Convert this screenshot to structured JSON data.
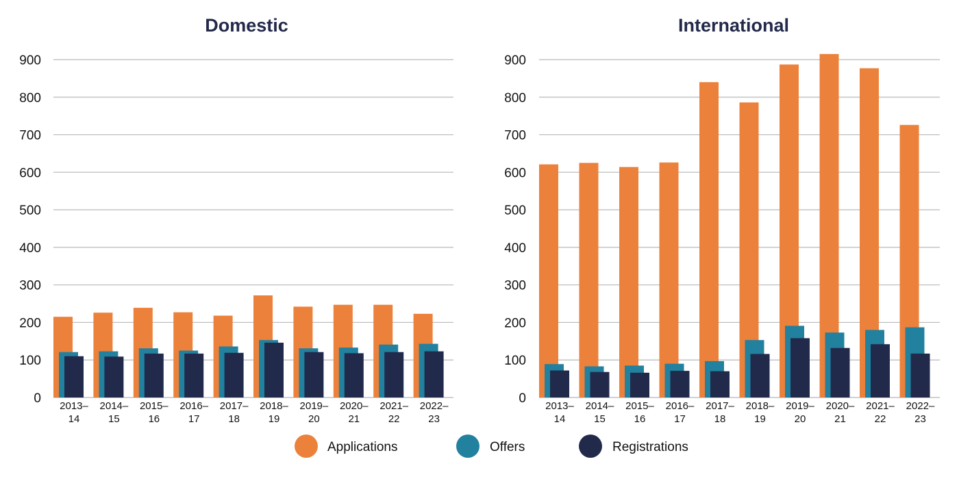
{
  "chart_data": [
    {
      "type": "bar",
      "title": "Domestic",
      "categories": [
        [
          "2013–",
          "14"
        ],
        [
          "2014–",
          "15"
        ],
        [
          "2015–",
          "16"
        ],
        [
          "2016–",
          "17"
        ],
        [
          "2017–",
          "18"
        ],
        [
          "2018–",
          "19"
        ],
        [
          "2019–",
          "20"
        ],
        [
          "2020–",
          "21"
        ],
        [
          "2021–",
          "22"
        ],
        [
          "2022–",
          "23"
        ]
      ],
      "ylim": [
        0,
        900
      ],
      "yticks": [
        0,
        100,
        200,
        300,
        400,
        500,
        600,
        700,
        800,
        900
      ],
      "grid": true,
      "series": [
        {
          "name": "Applications",
          "color": "#ec813b",
          "values": [
            215,
            226,
            239,
            227,
            218,
            272,
            242,
            247,
            247,
            223
          ]
        },
        {
          "name": "Offers",
          "color": "#21819f",
          "values": [
            121,
            123,
            131,
            125,
            136,
            153,
            131,
            133,
            141,
            143
          ]
        },
        {
          "name": "Registrations",
          "color": "#222a4b",
          "values": [
            110,
            109,
            117,
            117,
            119,
            146,
            121,
            118,
            121,
            123
          ]
        }
      ]
    },
    {
      "type": "bar",
      "title": "International",
      "categories": [
        [
          "2013–",
          "14"
        ],
        [
          "2014–",
          "15"
        ],
        [
          "2015–",
          "16"
        ],
        [
          "2016–",
          "17"
        ],
        [
          "2017–",
          "18"
        ],
        [
          "2018–",
          "19"
        ],
        [
          "2019–",
          "20"
        ],
        [
          "2020–",
          "21"
        ],
        [
          "2021–",
          "22"
        ],
        [
          "2022–",
          "23"
        ]
      ],
      "ylim": [
        0,
        900
      ],
      "yticks": [
        0,
        100,
        200,
        300,
        400,
        500,
        600,
        700,
        800,
        900
      ],
      "grid": true,
      "series": [
        {
          "name": "Applications",
          "color": "#ec813b",
          "values": [
            621,
            625,
            614,
            626,
            840,
            786,
            887,
            915,
            877,
            726
          ]
        },
        {
          "name": "Offers",
          "color": "#21819f",
          "values": [
            89,
            83,
            85,
            90,
            97,
            153,
            191,
            173,
            180,
            187
          ]
        },
        {
          "name": "Registrations",
          "color": "#222a4b",
          "values": [
            72,
            68,
            66,
            71,
            70,
            116,
            158,
            132,
            142,
            117
          ]
        }
      ]
    }
  ],
  "legend": {
    "position": "bottom-center",
    "items": [
      {
        "label": "Applications",
        "color": "#ec813b"
      },
      {
        "label": "Offers",
        "color": "#21819f"
      },
      {
        "label": "Registrations",
        "color": "#222a4b"
      }
    ]
  }
}
